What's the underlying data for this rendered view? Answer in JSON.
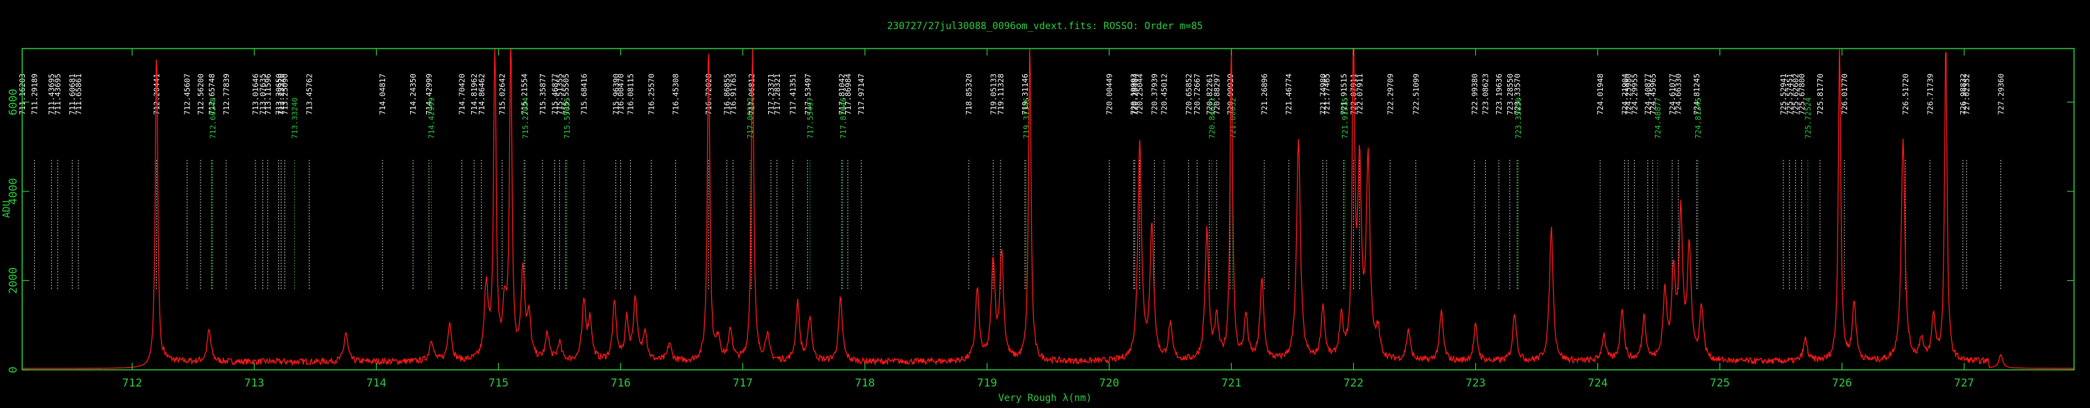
{
  "chart_data": {
    "type": "line",
    "title": "230727/27jul30088_0096om_vdext.fits: ROSSO: Order m=85",
    "xlabel": "Very Rough λ(nm)",
    "ylabel": "ADU",
    "xlim": [
      711.1,
      727.9
    ],
    "ylim": [
      0,
      7200
    ],
    "x_ticks": [
      712,
      713,
      714,
      715,
      716,
      717,
      718,
      719,
      720,
      721,
      722,
      723,
      724,
      725,
      726,
      727
    ],
    "y_ticks": [
      0,
      2000,
      4000,
      6000
    ],
    "grid": false,
    "colors": {
      "frame": "#2ecc40",
      "spectrum": "#ff1a1a",
      "white_lines": "#ffffff",
      "green_lines": "#2ecc40"
    },
    "spectrum": {
      "name": "spectrum",
      "baseline": 30,
      "peaks": [
        [
          712.2,
          7200
        ],
        [
          712.63,
          700
        ],
        [
          713.75,
          650
        ],
        [
          714.45,
          500
        ],
        [
          714.6,
          900
        ],
        [
          714.9,
          1700
        ],
        [
          714.97,
          7200
        ],
        [
          715.05,
          1100
        ],
        [
          715.1,
          7200
        ],
        [
          715.2,
          2000
        ],
        [
          715.25,
          900
        ],
        [
          715.4,
          600
        ],
        [
          715.5,
          400
        ],
        [
          715.7,
          1300
        ],
        [
          715.75,
          900
        ],
        [
          715.95,
          1300
        ],
        [
          716.05,
          900
        ],
        [
          716.12,
          1400
        ],
        [
          716.2,
          700
        ],
        [
          716.4,
          400
        ],
        [
          716.72,
          7200
        ],
        [
          716.8,
          500
        ],
        [
          716.9,
          700
        ],
        [
          717.08,
          7200
        ],
        [
          717.2,
          600
        ],
        [
          717.45,
          1300
        ],
        [
          717.55,
          1000
        ],
        [
          717.8,
          1400
        ],
        [
          718.92,
          1600
        ],
        [
          719.05,
          2200
        ],
        [
          719.12,
          2400
        ],
        [
          719.35,
          7200
        ],
        [
          720.25,
          4900
        ],
        [
          720.35,
          3000
        ],
        [
          720.5,
          800
        ],
        [
          720.8,
          2900
        ],
        [
          720.88,
          900
        ],
        [
          721.0,
          7200
        ],
        [
          721.12,
          1000
        ],
        [
          721.25,
          1800
        ],
        [
          721.55,
          5000
        ],
        [
          721.75,
          1200
        ],
        [
          721.9,
          900
        ],
        [
          722.0,
          7200
        ],
        [
          722.05,
          4200
        ],
        [
          722.12,
          4400
        ],
        [
          722.2,
          600
        ],
        [
          722.45,
          700
        ],
        [
          722.72,
          1100
        ],
        [
          723.0,
          800
        ],
        [
          723.32,
          1100
        ],
        [
          723.62,
          3000
        ],
        [
          724.05,
          600
        ],
        [
          724.2,
          1200
        ],
        [
          724.38,
          1000
        ],
        [
          724.55,
          1500
        ],
        [
          724.62,
          1900
        ],
        [
          724.68,
          3200
        ],
        [
          724.75,
          2500
        ],
        [
          724.85,
          1200
        ],
        [
          725.7,
          500
        ],
        [
          725.98,
          7200
        ],
        [
          726.1,
          1300
        ],
        [
          726.5,
          5000
        ],
        [
          726.65,
          500
        ],
        [
          726.75,
          1000
        ],
        [
          726.85,
          7200
        ],
        [
          727.3,
          300
        ]
      ]
    },
    "line_ids": [
      {
        "x": 711.1,
        "label": "711.16203",
        "color": "white"
      },
      {
        "x": 711.2,
        "label": "711.29189",
        "color": "white"
      },
      {
        "x": 711.34,
        "label": "711.43695",
        "color": "white"
      },
      {
        "x": 711.39,
        "label": "711.43695",
        "color": "white"
      },
      {
        "x": 711.51,
        "label": "711.60681",
        "color": "white"
      },
      {
        "x": 711.56,
        "label": "711.65861",
        "color": "white"
      },
      {
        "x": 712.2,
        "label": "712.20441",
        "color": "white"
      },
      {
        "x": 712.45,
        "label": "712.45607",
        "color": "white"
      },
      {
        "x": 712.56,
        "label": "712.56200",
        "color": "white"
      },
      {
        "x": 712.65,
        "label": "712.65748",
        "color": "white"
      },
      {
        "x": 712.66,
        "label": "712.66248",
        "color": "green"
      },
      {
        "x": 712.77,
        "label": "712.77839",
        "color": "white"
      },
      {
        "x": 713.01,
        "label": "713.01646",
        "color": "white"
      },
      {
        "x": 713.07,
        "label": "713.07635",
        "color": "white"
      },
      {
        "x": 713.11,
        "label": "713.11596",
        "color": "white"
      },
      {
        "x": 713.2,
        "label": "713.20650",
        "color": "white"
      },
      {
        "x": 713.22,
        "label": "713.23320",
        "color": "white"
      },
      {
        "x": 713.25,
        "label": "713.25090",
        "color": "white"
      },
      {
        "x": 713.33,
        "label": "713.33240",
        "color": "green"
      },
      {
        "x": 713.45,
        "label": "713.45762",
        "color": "white"
      },
      {
        "x": 714.05,
        "label": "714.04817",
        "color": "white"
      },
      {
        "x": 714.3,
        "label": "714.24350",
        "color": "white"
      },
      {
        "x": 714.43,
        "label": "714.42999",
        "color": "white"
      },
      {
        "x": 714.45,
        "label": "714.42999",
        "color": "green"
      },
      {
        "x": 714.7,
        "label": "714.70420",
        "color": "white"
      },
      {
        "x": 714.8,
        "label": "714.81962",
        "color": "white"
      },
      {
        "x": 714.86,
        "label": "714.86462",
        "color": "white"
      },
      {
        "x": 715.03,
        "label": "715.02642",
        "color": "white"
      },
      {
        "x": 715.21,
        "label": "715.21554",
        "color": "white"
      },
      {
        "x": 715.22,
        "label": "715.22054",
        "color": "green"
      },
      {
        "x": 715.36,
        "label": "715.35877",
        "color": "white"
      },
      {
        "x": 715.46,
        "label": "715.46877",
        "color": "white"
      },
      {
        "x": 715.5,
        "label": "715.51355",
        "color": "white"
      },
      {
        "x": 715.55,
        "label": "715.55505",
        "color": "white"
      },
      {
        "x": 715.56,
        "label": "715.55655",
        "color": "green"
      },
      {
        "x": 715.7,
        "label": "715.68416",
        "color": "white"
      },
      {
        "x": 715.96,
        "label": "715.96390",
        "color": "white"
      },
      {
        "x": 716.0,
        "label": "716.00470",
        "color": "white"
      },
      {
        "x": 716.08,
        "label": "716.08115",
        "color": "white"
      },
      {
        "x": 716.25,
        "label": "716.25570",
        "color": "white"
      },
      {
        "x": 716.45,
        "label": "716.45308",
        "color": "white"
      },
      {
        "x": 716.72,
        "label": "716.72028",
        "color": "white"
      },
      {
        "x": 716.87,
        "label": "716.86855",
        "color": "white"
      },
      {
        "x": 716.92,
        "label": "716.91763",
        "color": "white"
      },
      {
        "x": 717.06,
        "label": "717.06212",
        "color": "green"
      },
      {
        "x": 717.07,
        "label": "717.06812",
        "color": "white"
      },
      {
        "x": 717.23,
        "label": "717.23371",
        "color": "white"
      },
      {
        "x": 717.28,
        "label": "717.28321",
        "color": "white"
      },
      {
        "x": 717.41,
        "label": "717.41351",
        "color": "white"
      },
      {
        "x": 717.53,
        "label": "717.53497",
        "color": "white"
      },
      {
        "x": 717.55,
        "label": "717.55497",
        "color": "green"
      },
      {
        "x": 717.81,
        "label": "717.81042",
        "color": "white"
      },
      {
        "x": 717.82,
        "label": "717.81646",
        "color": "green"
      },
      {
        "x": 717.86,
        "label": "717.86984",
        "color": "white"
      },
      {
        "x": 717.97,
        "label": "717.97147",
        "color": "white"
      },
      {
        "x": 718.85,
        "label": "718.85320",
        "color": "white"
      },
      {
        "x": 719.05,
        "label": "719.05133",
        "color": "white"
      },
      {
        "x": 719.11,
        "label": "719.11328",
        "color": "white"
      },
      {
        "x": 719.31,
        "label": "719.31146",
        "color": "white"
      },
      {
        "x": 719.32,
        "label": "719.31146",
        "color": "green"
      },
      {
        "x": 720.0,
        "label": "720.00449",
        "color": "white"
      },
      {
        "x": 720.2,
        "label": "720.19993",
        "color": "white"
      },
      {
        "x": 720.21,
        "label": "720.20404",
        "color": "white"
      },
      {
        "x": 720.25,
        "label": "720.25044",
        "color": "white"
      },
      {
        "x": 720.37,
        "label": "720.37939",
        "color": "white"
      },
      {
        "x": 720.45,
        "label": "720.45012",
        "color": "white"
      },
      {
        "x": 720.65,
        "label": "720.65852",
        "color": "white"
      },
      {
        "x": 720.72,
        "label": "720.72667",
        "color": "white"
      },
      {
        "x": 720.82,
        "label": "720.82261",
        "color": "white"
      },
      {
        "x": 720.84,
        "label": "720.84621",
        "color": "green"
      },
      {
        "x": 720.88,
        "label": "720.88297",
        "color": "white"
      },
      {
        "x": 720.99,
        "label": "720.99929",
        "color": "white"
      },
      {
        "x": 721.01,
        "label": "721.00032",
        "color": "green"
      },
      {
        "x": 721.27,
        "label": "721.26896",
        "color": "white"
      },
      {
        "x": 721.47,
        "label": "721.46774",
        "color": "white"
      },
      {
        "x": 721.75,
        "label": "721.74980",
        "color": "white"
      },
      {
        "x": 721.78,
        "label": "721.77465",
        "color": "white"
      },
      {
        "x": 721.92,
        "label": "721.91515",
        "color": "white"
      },
      {
        "x": 721.93,
        "label": "721.91515",
        "color": "green"
      },
      {
        "x": 722.0,
        "label": "722.07911",
        "color": "white"
      },
      {
        "x": 722.05,
        "label": "722.07911",
        "color": "white"
      },
      {
        "x": 722.3,
        "label": "722.29709",
        "color": "white"
      },
      {
        "x": 722.51,
        "label": "722.51099",
        "color": "white"
      },
      {
        "x": 722.99,
        "label": "722.99380",
        "color": "white"
      },
      {
        "x": 723.08,
        "label": "723.08623",
        "color": "white"
      },
      {
        "x": 723.19,
        "label": "723.19636",
        "color": "white"
      },
      {
        "x": 723.28,
        "label": "723.28550",
        "color": "white"
      },
      {
        "x": 723.34,
        "label": "723.33570",
        "color": "white"
      },
      {
        "x": 723.35,
        "label": "723.35850",
        "color": "green"
      },
      {
        "x": 724.02,
        "label": "724.01948",
        "color": "white"
      },
      {
        "x": 724.22,
        "label": "724.21904",
        "color": "white"
      },
      {
        "x": 724.25,
        "label": "724.25980",
        "color": "white"
      },
      {
        "x": 724.3,
        "label": "724.29955",
        "color": "white"
      },
      {
        "x": 724.41,
        "label": "724.40877",
        "color": "white"
      },
      {
        "x": 724.45,
        "label": "724.45965",
        "color": "white"
      },
      {
        "x": 724.49,
        "label": "724.48877",
        "color": "green"
      },
      {
        "x": 724.61,
        "label": "724.61077",
        "color": "white"
      },
      {
        "x": 724.66,
        "label": "724.66330",
        "color": "white"
      },
      {
        "x": 724.81,
        "label": "724.81245",
        "color": "white"
      },
      {
        "x": 724.82,
        "label": "724.81245",
        "color": "green"
      },
      {
        "x": 725.52,
        "label": "725.52941",
        "color": "white"
      },
      {
        "x": 725.57,
        "label": "725.57451",
        "color": "white"
      },
      {
        "x": 725.62,
        "label": "725.62602",
        "color": "white"
      },
      {
        "x": 725.67,
        "label": "725.67800",
        "color": "white"
      },
      {
        "x": 725.72,
        "label": "725.72524",
        "color": "green"
      },
      {
        "x": 725.82,
        "label": "725.81770",
        "color": "white"
      },
      {
        "x": 726.02,
        "label": "726.01770",
        "color": "white"
      },
      {
        "x": 726.52,
        "label": "726.51720",
        "color": "white"
      },
      {
        "x": 726.72,
        "label": "726.71739",
        "color": "white"
      },
      {
        "x": 726.99,
        "label": "726.98832",
        "color": "white"
      },
      {
        "x": 727.02,
        "label": "727.02352",
        "color": "white"
      },
      {
        "x": 727.3,
        "label": "727.29360",
        "color": "white"
      }
    ]
  }
}
